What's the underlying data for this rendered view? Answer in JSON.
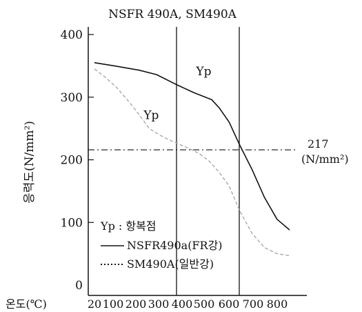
{
  "chart_data": {
    "type": "line",
    "title": "NSFR 490A, SM490A",
    "ylabel": "응력도(N/mm²)",
    "xlabel": "온도(℃)",
    "x_ticks": [
      20,
      100,
      200,
      300,
      400,
      500,
      600,
      700,
      800
    ],
    "y_ticks": [
      0,
      100,
      200,
      300,
      400
    ],
    "xlim": [
      20,
      800
    ],
    "ylim": [
      0,
      400
    ],
    "vertical_lines": [
      350,
      600
    ],
    "reference_line": {
      "y": 217,
      "label_value": "217",
      "label_unit": "(N/mm²)"
    },
    "series": [
      {
        "name": "NSFR490a(FR강)",
        "style": "solid",
        "color": "#111111",
        "points": [
          [
            20,
            355
          ],
          [
            100,
            350
          ],
          [
            200,
            343
          ],
          [
            270,
            336
          ],
          [
            350,
            320
          ],
          [
            420,
            307
          ],
          [
            490,
            296
          ],
          [
            520,
            283
          ],
          [
            560,
            260
          ],
          [
            600,
            225
          ],
          [
            650,
            185
          ],
          [
            700,
            140
          ],
          [
            750,
            105
          ],
          [
            800,
            88
          ]
        ]
      },
      {
        "name": "SM490A(일반강)",
        "style": "dotted",
        "color": "#a9a9a9",
        "points": [
          [
            20,
            345
          ],
          [
            60,
            333
          ],
          [
            110,
            315
          ],
          [
            160,
            292
          ],
          [
            200,
            272
          ],
          [
            240,
            250
          ],
          [
            280,
            240
          ],
          [
            320,
            232
          ],
          [
            360,
            225
          ],
          [
            400,
            218
          ],
          [
            440,
            210
          ],
          [
            480,
            198
          ],
          [
            520,
            180
          ],
          [
            560,
            158
          ],
          [
            600,
            120
          ],
          [
            650,
            83
          ],
          [
            700,
            60
          ],
          [
            750,
            50
          ],
          [
            800,
            47
          ]
        ]
      }
    ],
    "annotations": [
      {
        "text": "Yp",
        "x": 450,
        "y": 335
      },
      {
        "text": "Yp",
        "x": 240,
        "y": 265
      }
    ],
    "legend": {
      "note": "Yp : 항복점",
      "items": [
        {
          "style": "solid",
          "label": "NSFR490a(FR강)"
        },
        {
          "style": "dotted",
          "label": "SM490A(일반강)"
        }
      ]
    }
  }
}
